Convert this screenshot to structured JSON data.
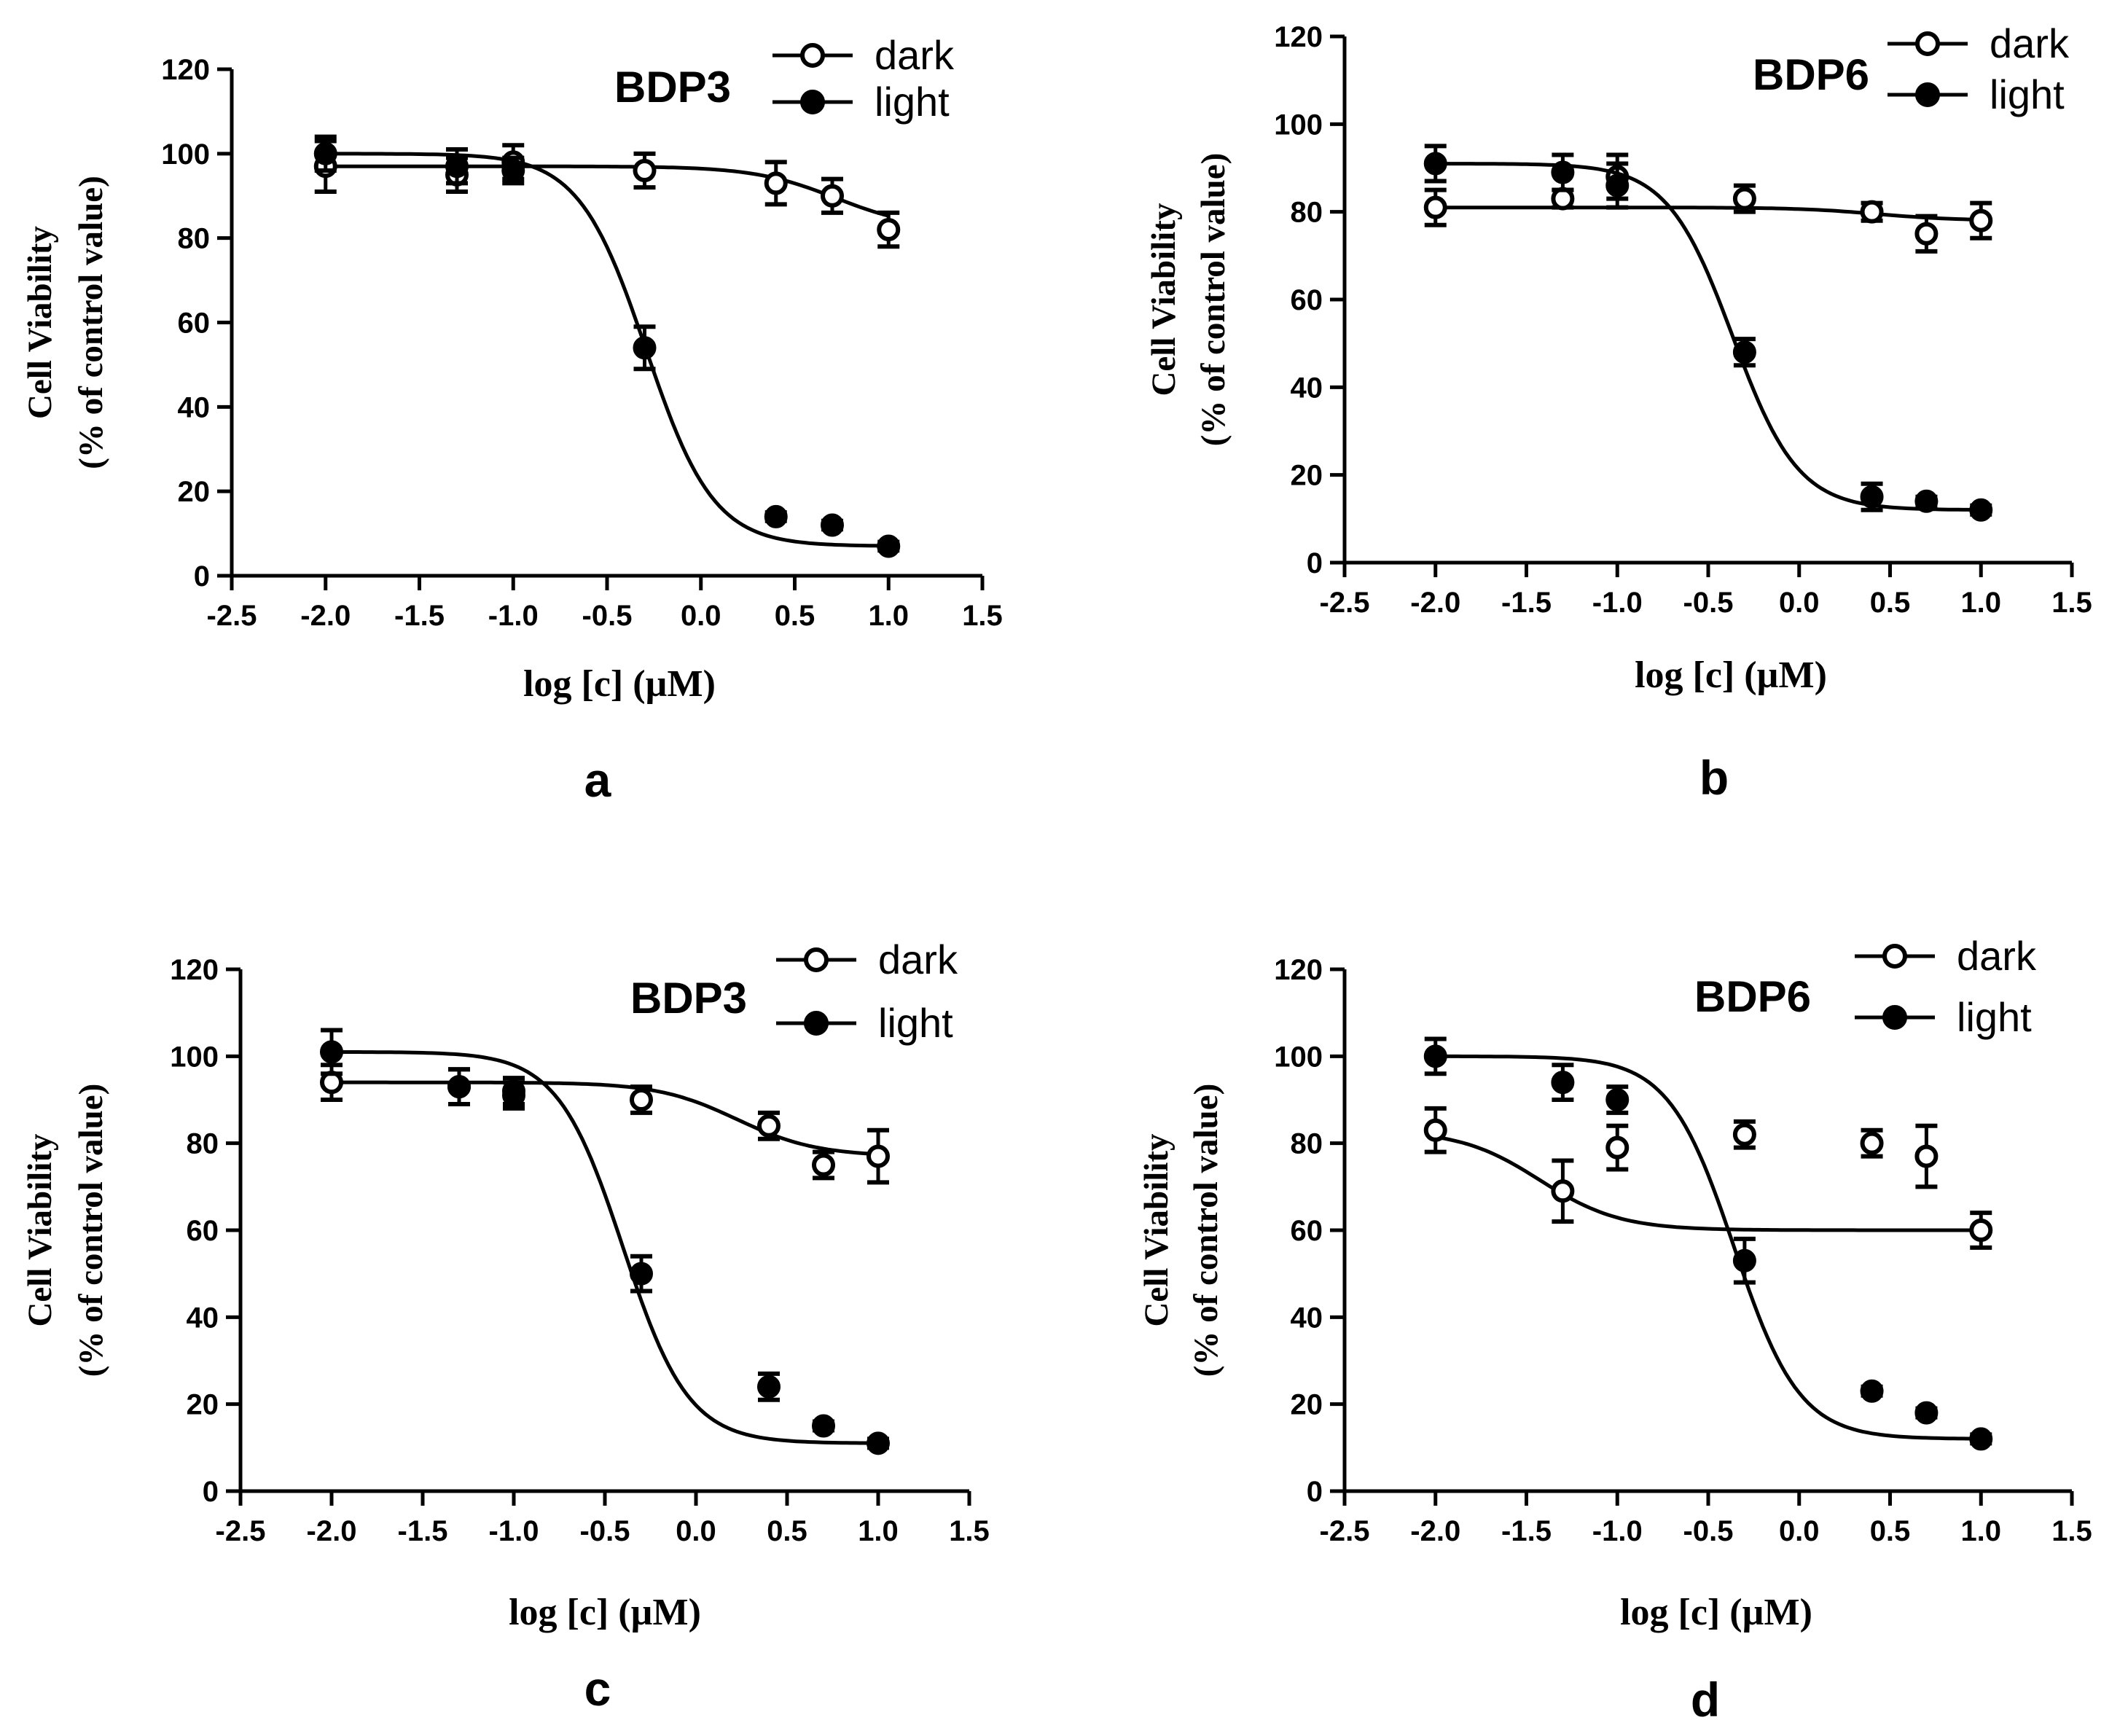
{
  "chart_data": [
    {
      "type": "scatter",
      "panel_label": "a",
      "title": "BDP3",
      "xlabel": "log [c] (µM)",
      "ylabel_line1": "Cell Viability",
      "ylabel_line2": "(% of control value)",
      "xlim": [
        -2.5,
        1.5
      ],
      "ylim": [
        0,
        120
      ],
      "xticks": [
        -2.5,
        -2.0,
        -1.5,
        -1.0,
        -0.5,
        0.0,
        0.5,
        1.0,
        1.5
      ],
      "yticks": [
        0,
        20,
        40,
        60,
        80,
        100,
        120
      ],
      "legend_position": "top-right",
      "series": [
        {
          "name": "dark",
          "marker": "open-circle",
          "x": [
            -2.0,
            -1.3,
            -1.0,
            -0.3,
            0.4,
            0.7,
            1.0
          ],
          "y": [
            97,
            95,
            98,
            96,
            93,
            90,
            82
          ],
          "err": [
            6,
            4,
            4,
            4,
            5,
            4,
            4
          ]
        },
        {
          "name": "light",
          "marker": "filled-circle",
          "x": [
            -2.0,
            -1.3,
            -1.0,
            -0.3,
            0.4,
            0.7,
            1.0
          ],
          "y": [
            100,
            97,
            96,
            54,
            14,
            12,
            7
          ],
          "err": [
            4,
            4,
            3,
            5,
            1,
            1,
            1
          ]
        }
      ]
    },
    {
      "type": "scatter",
      "panel_label": "b",
      "title": "BDP6",
      "xlabel": "log [c] (µM)",
      "ylabel_line1": "Cell Viability",
      "ylabel_line2": "(% of control value)",
      "xlim": [
        -2.5,
        1.5
      ],
      "ylim": [
        0,
        120
      ],
      "xticks": [
        -2.5,
        -2.0,
        -1.5,
        -1.0,
        -0.5,
        0.0,
        0.5,
        1.0,
        1.5
      ],
      "yticks": [
        0,
        20,
        40,
        60,
        80,
        100,
        120
      ],
      "legend_position": "top-right",
      "series": [
        {
          "name": "dark",
          "marker": "open-circle",
          "x": [
            -2.0,
            -1.3,
            -1.0,
            -0.3,
            0.4,
            0.7,
            1.0
          ],
          "y": [
            81,
            83,
            88,
            83,
            80,
            75,
            78
          ],
          "err": [
            4,
            2,
            5,
            3,
            2,
            4,
            4
          ]
        },
        {
          "name": "light",
          "marker": "filled-circle",
          "x": [
            -2.0,
            -1.3,
            -1.0,
            -0.3,
            0.4,
            0.7,
            1.0
          ],
          "y": [
            91,
            89,
            86,
            48,
            15,
            14,
            12
          ],
          "err": [
            4,
            4,
            5,
            3,
            3,
            1,
            1
          ]
        }
      ]
    },
    {
      "type": "scatter",
      "panel_label": "c",
      "title": "BDP3",
      "xlabel": "log [c] (µM)",
      "ylabel_line1": "Cell Viability",
      "ylabel_line2": "(% of control value)",
      "xlim": [
        -2.5,
        1.5
      ],
      "ylim": [
        0,
        120
      ],
      "xticks": [
        -2.5,
        -2.0,
        -1.5,
        -1.0,
        -0.5,
        0.0,
        0.5,
        1.0,
        1.5
      ],
      "yticks": [
        0,
        20,
        40,
        60,
        80,
        100,
        120
      ],
      "legend_position": "top-right",
      "series": [
        {
          "name": "dark",
          "marker": "open-circle",
          "x": [
            -2.0,
            -1.3,
            -1.0,
            -0.3,
            0.4,
            0.7,
            1.0
          ],
          "y": [
            94,
            93,
            91,
            90,
            84,
            75,
            77
          ],
          "err": [
            4,
            4,
            3,
            3,
            3,
            3,
            6
          ]
        },
        {
          "name": "light",
          "marker": "filled-circle",
          "x": [
            -2.0,
            -1.3,
            -1.0,
            -0.3,
            0.4,
            0.7,
            1.0
          ],
          "y": [
            101,
            93,
            92,
            50,
            24,
            15,
            11
          ],
          "err": [
            5,
            4,
            3,
            4,
            3,
            1,
            1
          ]
        }
      ]
    },
    {
      "type": "scatter",
      "panel_label": "d",
      "title": "BDP6",
      "xlabel": "log [c] (µM)",
      "ylabel_line1": "Cell Viability",
      "ylabel_line2": "(% of control value)",
      "xlim": [
        -2.5,
        1.5
      ],
      "ylim": [
        0,
        120
      ],
      "xticks": [
        -2.5,
        -2.0,
        -1.5,
        -1.0,
        -0.5,
        0.0,
        0.5,
        1.0,
        1.5
      ],
      "yticks": [
        0,
        20,
        40,
        60,
        80,
        100,
        120
      ],
      "legend_position": "top-right",
      "series": [
        {
          "name": "dark",
          "marker": "open-circle",
          "x": [
            -2.0,
            -1.3,
            -1.0,
            -0.3,
            0.4,
            0.7,
            1.0
          ],
          "y": [
            83,
            69,
            79,
            82,
            80,
            77,
            60
          ],
          "err": [
            5,
            7,
            5,
            3,
            3,
            7,
            4
          ]
        },
        {
          "name": "light",
          "marker": "filled-circle",
          "x": [
            -2.0,
            -1.3,
            -1.0,
            -0.3,
            0.4,
            0.7,
            1.0
          ],
          "y": [
            100,
            94,
            90,
            53,
            23,
            18,
            12
          ],
          "err": [
            4,
            4,
            3,
            5,
            1,
            1,
            1
          ]
        }
      ]
    }
  ]
}
